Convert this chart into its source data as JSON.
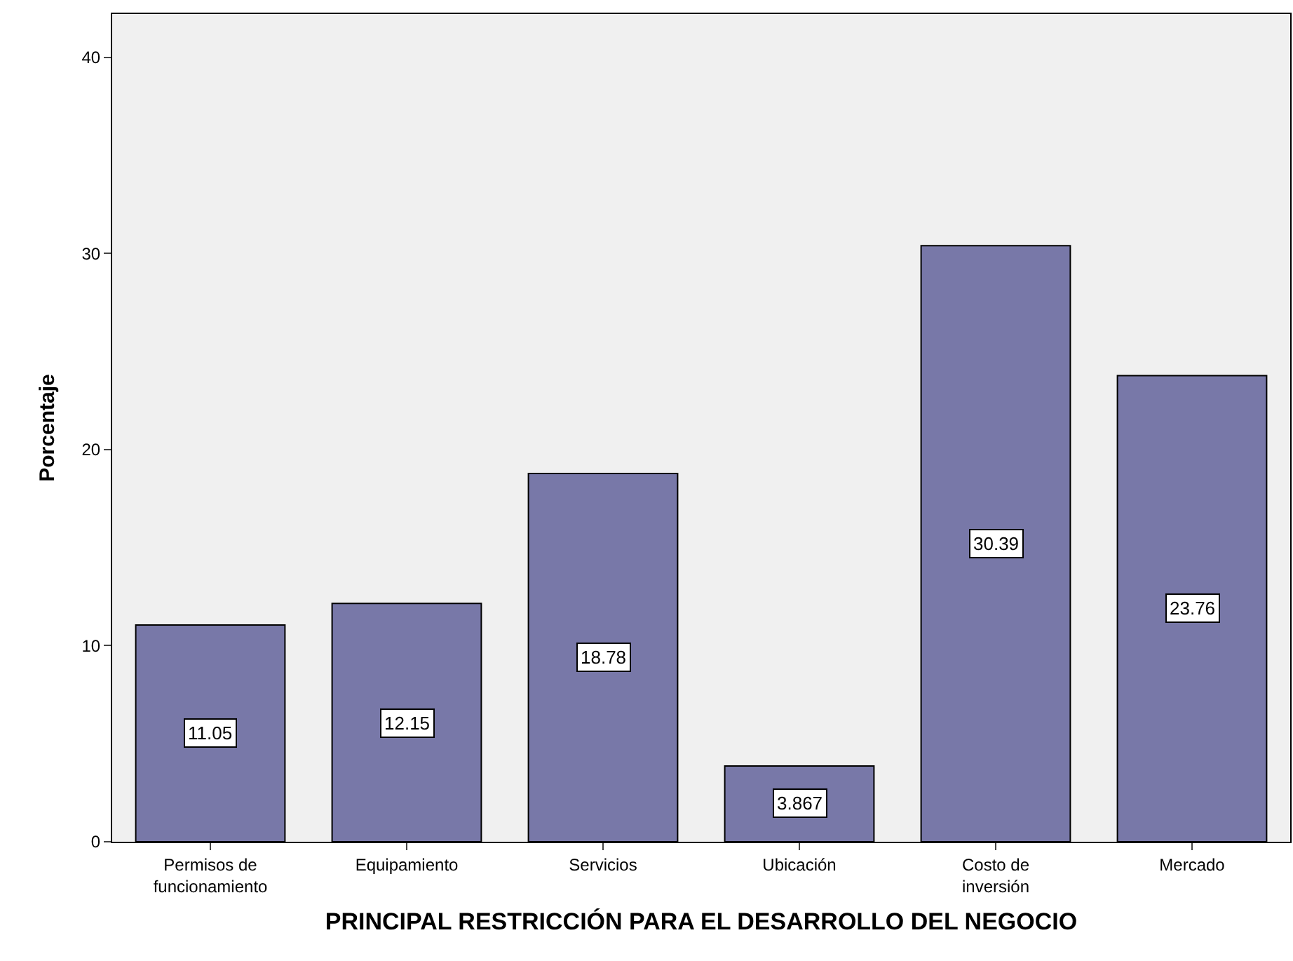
{
  "chart_data": {
    "type": "bar",
    "xlabel": "PRINCIPAL RESTRICCIÓN PARA EL DESARROLLO DEL NEGOCIO",
    "ylabel": "Porcentaje",
    "categories": [
      "Permisos de\nfuncionamiento",
      "Equipamiento",
      "Servicios",
      "Ubicación",
      "Costo de\ninversión",
      "Mercado"
    ],
    "values": [
      11.05,
      12.15,
      18.78,
      3.867,
      30.39,
      23.76
    ],
    "color": "#7878a8",
    "ylim": [
      0,
      42.2
    ],
    "yticks": [
      0,
      10,
      20,
      30,
      40
    ],
    "data_labels": true,
    "grid": false
  }
}
